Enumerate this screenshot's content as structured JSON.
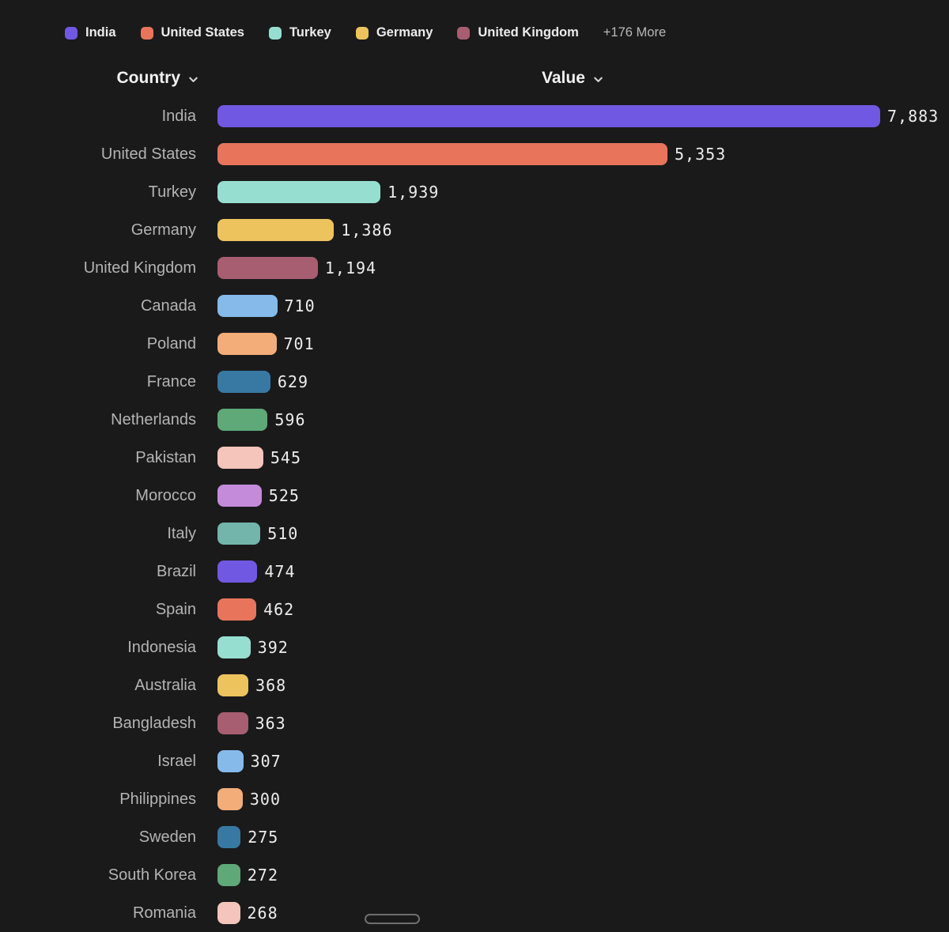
{
  "legend": {
    "items": [
      {
        "label": "India",
        "color": "#7158e2"
      },
      {
        "label": "United States",
        "color": "#e8745c"
      },
      {
        "label": "Turkey",
        "color": "#96dfd0"
      },
      {
        "label": "Germany",
        "color": "#edc35e"
      },
      {
        "label": "United Kingdom",
        "color": "#a75e70"
      }
    ],
    "more_label": "+176 More"
  },
  "table": {
    "country_header": "Country",
    "value_header": "Value"
  },
  "chart_data": {
    "type": "bar",
    "orientation": "horizontal",
    "title": "",
    "xlabel": "Value",
    "ylabel": "Country",
    "xlim": [
      0,
      7883
    ],
    "grid": false,
    "legend_position": "top",
    "categories": [
      "India",
      "United States",
      "Turkey",
      "Germany",
      "United Kingdom",
      "Canada",
      "Poland",
      "France",
      "Netherlands",
      "Pakistan",
      "Morocco",
      "Italy",
      "Brazil",
      "Spain",
      "Indonesia",
      "Australia",
      "Bangladesh",
      "Israel",
      "Philippines",
      "Sweden",
      "South Korea",
      "Romania"
    ],
    "values": [
      7883,
      5353,
      1939,
      1386,
      1194,
      710,
      701,
      629,
      596,
      545,
      525,
      510,
      474,
      462,
      392,
      368,
      363,
      307,
      300,
      275,
      272,
      268
    ],
    "value_labels": [
      "7,883",
      "5,353",
      "1,939",
      "1,386",
      "1,194",
      "710",
      "701",
      "629",
      "596",
      "545",
      "525",
      "510",
      "474",
      "462",
      "392",
      "368",
      "363",
      "307",
      "300",
      "275",
      "272",
      "268"
    ],
    "palette": [
      "#7158e2",
      "#e8745c",
      "#96dfd0",
      "#edc35e",
      "#a75e70",
      "#85baeb",
      "#f2ad78",
      "#3779a3",
      "#5ea977",
      "#f5c4ba",
      "#c48bda",
      "#73b4ab"
    ]
  },
  "colors": {
    "background": "#1a1a1b",
    "row_label": "#b4b4b4",
    "value_text": "#ededed",
    "header_text": "#f2f2f2",
    "legend_text": "#ececec",
    "legend_more_text": "#b9b9b9",
    "scrollbar_border": "#6e6e6e"
  }
}
